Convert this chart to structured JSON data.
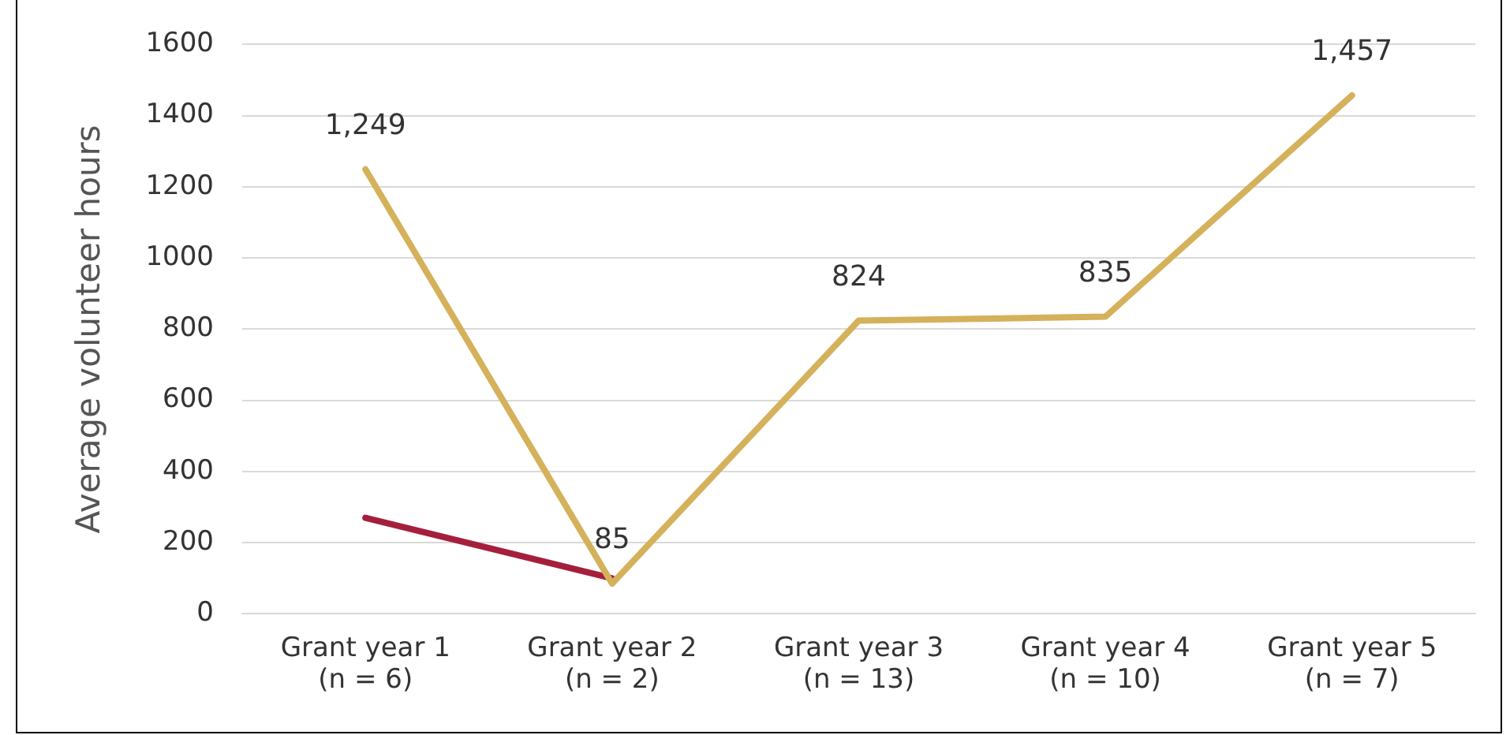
{
  "chart_data": {
    "type": "line",
    "ylabel": "Average volunteer hours",
    "categories": [
      "Grant year 1\n(n = 6)",
      "Grant year 2\n(n = 2)",
      "Grant year 3\n(n = 13)",
      "Grant year 4\n(n = 10)",
      "Grant year 5\n(n = 7)"
    ],
    "series": [
      {
        "color": "#d4b15a",
        "values": [
          1249,
          85,
          824,
          835,
          1457
        ],
        "value_labels": [
          "1,249",
          "85",
          "824",
          "835",
          "1,457"
        ]
      },
      {
        "color": "#a51f3d",
        "values": [
          270,
          100,
          null,
          null,
          null
        ]
      }
    ],
    "ylim": [
      0,
      1600
    ],
    "yticks": [
      0,
      200,
      400,
      600,
      800,
      1000,
      1200,
      1400,
      1600
    ],
    "grid": "y",
    "legend": false,
    "marker": "none",
    "line_style": "solid"
  }
}
